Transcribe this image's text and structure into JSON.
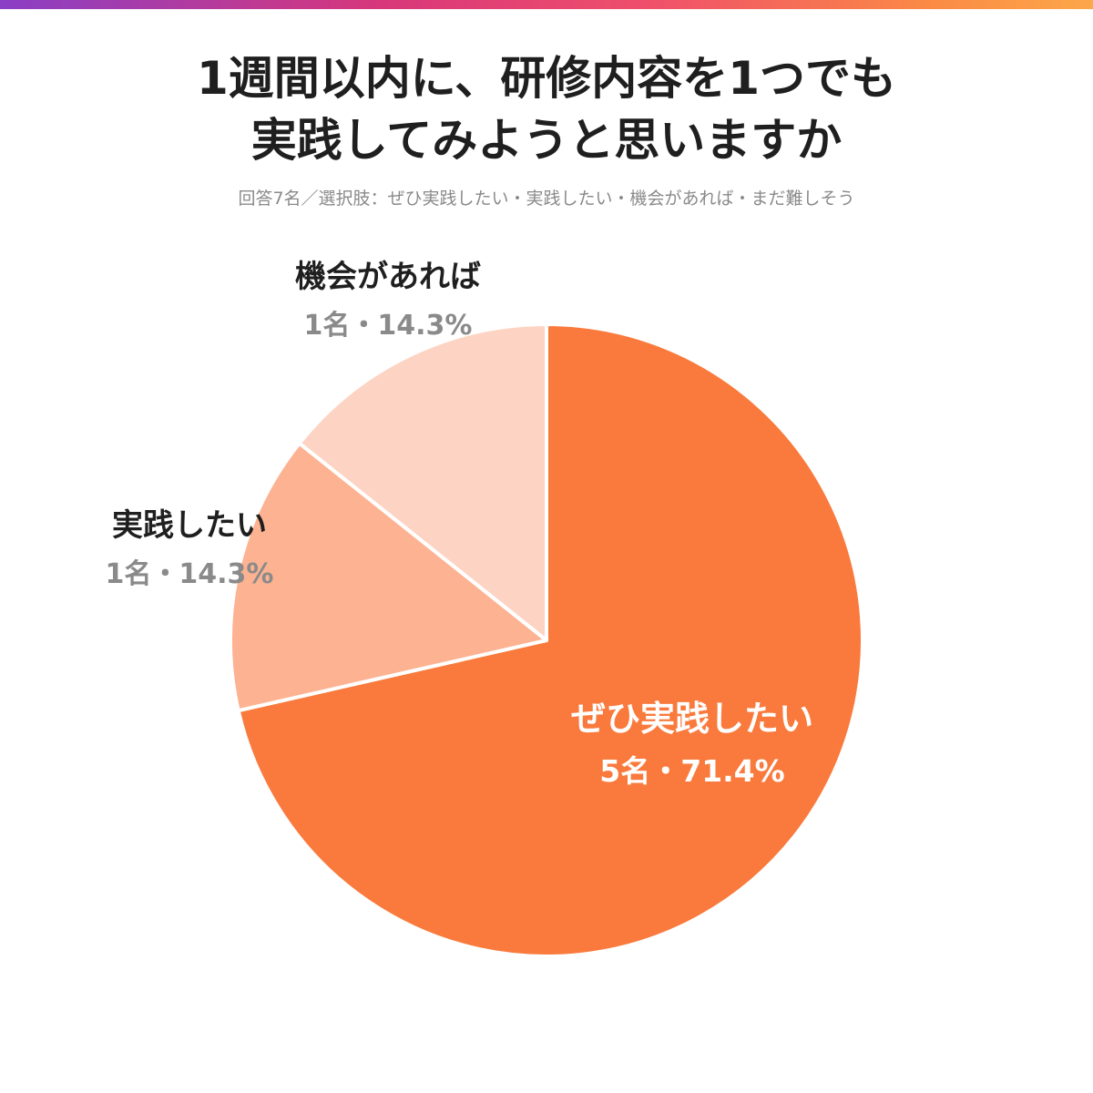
{
  "title": {
    "line1": "1週間以内に、研修内容を1つでも",
    "line2": "実践してみようと思いますか"
  },
  "subtitle": "回答7名／選択肢：ぜひ実践したい・実践したい・機会があれば・まだ難しそう",
  "colors": {
    "accent": "#f97a3c",
    "slice_2": "#fdb291",
    "slice_3": "#fdd4c3",
    "label_dark": "#1f1f1f",
    "label_gray": "#8a8a8a",
    "label_white": "#ffffff"
  },
  "chart_data": {
    "type": "pie",
    "total": 7,
    "slices": [
      {
        "name": "ぜひ実践したい",
        "count": 5,
        "percent": 71.4,
        "label": "5名・71.4%",
        "color": "#f97a3c"
      },
      {
        "name": "実践したい",
        "count": 1,
        "percent": 14.3,
        "label": "1名・14.3%",
        "color": "#fdb291"
      },
      {
        "name": "機会があれば",
        "count": 1,
        "percent": 14.3,
        "label": "1名・14.3%",
        "color": "#fdd4c3"
      }
    ]
  }
}
